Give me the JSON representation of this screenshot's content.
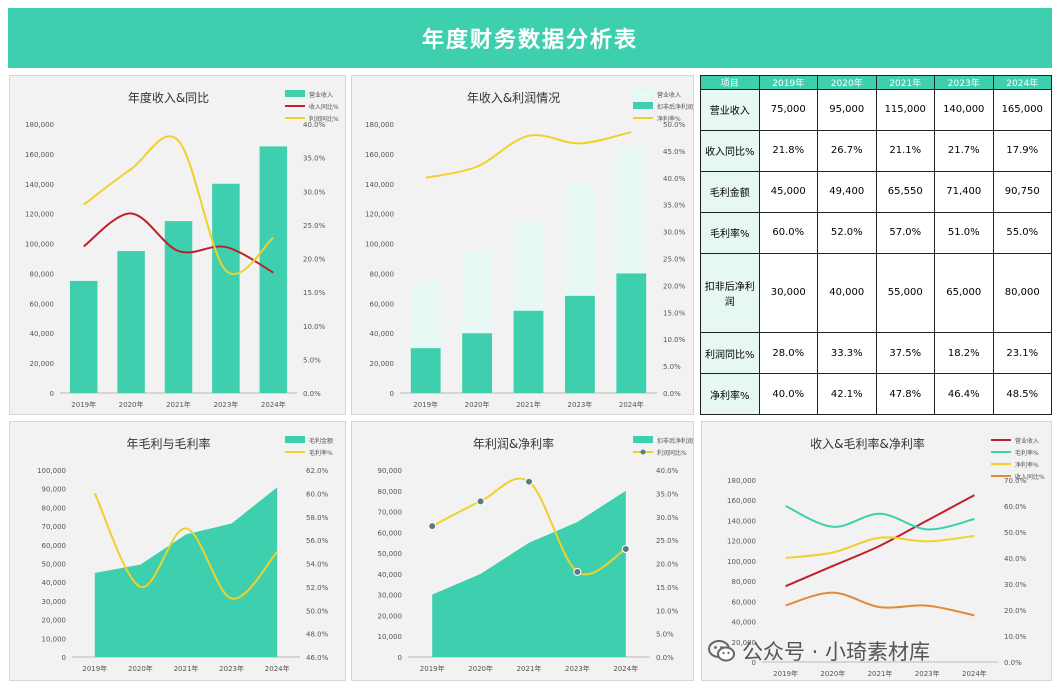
{
  "title": "年度财务数据分析表",
  "colors": {
    "teal": "#3ecfae",
    "light_teal": "#e8f8f4",
    "red": "#c0202a",
    "yellow": "#f0d12a",
    "orange": "#e08a3c",
    "dark_yellow": "#e3b820",
    "green": "#3ecfae"
  },
  "table": {
    "headers": [
      "项目",
      "2019年",
      "2020年",
      "2021年",
      "2023年",
      "2024年"
    ],
    "rows": [
      {
        "label": "营业收入",
        "values": [
          "75,000",
          "95,000",
          "115,000",
          "140,000",
          "165,000"
        ]
      },
      {
        "label": "收入同比%",
        "values": [
          "21.8%",
          "26.7%",
          "21.1%",
          "21.7%",
          "17.9%"
        ]
      },
      {
        "label": "毛利金额",
        "values": [
          "45,000",
          "49,400",
          "65,550",
          "71,400",
          "90,750"
        ]
      },
      {
        "label": "毛利率%",
        "values": [
          "60.0%",
          "52.0%",
          "57.0%",
          "51.0%",
          "55.0%"
        ]
      },
      {
        "label": "扣非后净利润",
        "values": [
          "30,000",
          "40,000",
          "55,000",
          "65,000",
          "80,000"
        ]
      },
      {
        "label": "利润同比%",
        "values": [
          "28.0%",
          "33.3%",
          "37.5%",
          "18.2%",
          "23.1%"
        ]
      },
      {
        "label": "净利率%",
        "values": [
          "40.0%",
          "42.1%",
          "47.8%",
          "46.4%",
          "48.5%"
        ]
      }
    ]
  },
  "watermark": {
    "text": "公众号 · 小琦素材库",
    "icon": "wechat-icon"
  },
  "chart_data": [
    {
      "type": "bar",
      "title": "年度收入&同比",
      "categories": [
        "2019年",
        "2020年",
        "2021年",
        "2023年",
        "2024年"
      ],
      "ylim": [
        0,
        180000
      ],
      "y2lim": [
        0,
        0.4
      ],
      "yticks": [
        "0",
        "20,000",
        "40,000",
        "60,000",
        "80,000",
        "100,000",
        "120,000",
        "140,000",
        "160,000",
        "180,000"
      ],
      "y2ticks": [
        "0.0%",
        "5.0%",
        "10.0%",
        "15.0%",
        "20.0%",
        "25.0%",
        "30.0%",
        "35.0%",
        "40.0%"
      ],
      "series": [
        {
          "name": "营业收入",
          "type": "bar",
          "axis": "y",
          "color": "#3ecfae",
          "values": [
            75000,
            95000,
            115000,
            140000,
            165000
          ]
        },
        {
          "name": "收入同比%",
          "type": "line",
          "axis": "y2",
          "color": "#c0202a",
          "values": [
            0.218,
            0.267,
            0.211,
            0.217,
            0.179
          ]
        },
        {
          "name": "利润同比%",
          "type": "line",
          "axis": "y2",
          "color": "#f0d12a",
          "values": [
            0.28,
            0.333,
            0.375,
            0.182,
            0.231
          ]
        }
      ],
      "legend_position": "top-right"
    },
    {
      "type": "bar",
      "title": "年收入&利润情况",
      "categories": [
        "2019年",
        "2020年",
        "2021年",
        "2023年",
        "2024年"
      ],
      "ylim": [
        0,
        180000
      ],
      "y2lim": [
        0,
        0.5
      ],
      "yticks": [
        "0",
        "20,000",
        "40,000",
        "60,000",
        "80,000",
        "100,000",
        "120,000",
        "140,000",
        "160,000",
        "180,000"
      ],
      "y2ticks": [
        "0.0%",
        "5.0%",
        "10.0%",
        "15.0%",
        "20.0%",
        "25.0%",
        "30.0%",
        "35.0%",
        "40.0%",
        "45.0%",
        "50.0%"
      ],
      "series": [
        {
          "name": "营业收入",
          "type": "bar-back",
          "axis": "y",
          "color": "#e8f8f4",
          "values": [
            75000,
            95000,
            115000,
            140000,
            165000
          ]
        },
        {
          "name": "扣非后净利润",
          "type": "bar",
          "axis": "y",
          "color": "#3ecfae",
          "values": [
            30000,
            40000,
            55000,
            65000,
            80000
          ]
        },
        {
          "name": "净利率%",
          "type": "line",
          "axis": "y2",
          "color": "#f0d12a",
          "values": [
            0.4,
            0.421,
            0.478,
            0.464,
            0.485
          ]
        }
      ],
      "legend_position": "top-right"
    },
    {
      "type": "area",
      "title": "年毛利与毛利率",
      "categories": [
        "2019年",
        "2020年",
        "2021年",
        "2023年",
        "2024年"
      ],
      "ylim": [
        0,
        100000
      ],
      "y2lim": [
        0.46,
        0.62
      ],
      "yticks": [
        "0",
        "10,000",
        "20,000",
        "30,000",
        "40,000",
        "50,000",
        "60,000",
        "70,000",
        "80,000",
        "90,000",
        "100,000"
      ],
      "y2ticks": [
        "46.0%",
        "48.0%",
        "50.0%",
        "52.0%",
        "54.0%",
        "56.0%",
        "58.0%",
        "60.0%",
        "62.0%"
      ],
      "series": [
        {
          "name": "毛利金额",
          "type": "area",
          "axis": "y",
          "color": "#3ecfae",
          "values": [
            45000,
            49400,
            65550,
            71400,
            90750
          ]
        },
        {
          "name": "毛利率%",
          "type": "line",
          "axis": "y2",
          "color": "#f0d12a",
          "values": [
            0.6,
            0.52,
            0.57,
            0.51,
            0.55
          ]
        }
      ],
      "legend_position": "top-right"
    },
    {
      "type": "area",
      "title": "年利润&净利率",
      "categories": [
        "2019年",
        "2020年",
        "2021年",
        "2023年",
        "2024年"
      ],
      "ylim": [
        0,
        90000
      ],
      "y2lim": [
        0,
        0.4
      ],
      "yticks": [
        "0",
        "10,000",
        "20,000",
        "30,000",
        "40,000",
        "50,000",
        "60,000",
        "70,000",
        "80,000",
        "90,000"
      ],
      "y2ticks": [
        "0.0%",
        "5.0%",
        "10.0%",
        "15.0%",
        "20.0%",
        "25.0%",
        "30.0%",
        "35.0%",
        "40.0%"
      ],
      "series": [
        {
          "name": "扣非后净利润",
          "type": "area",
          "axis": "y",
          "color": "#3ecfae",
          "values": [
            30000,
            40000,
            55000,
            65000,
            80000
          ]
        },
        {
          "name": "利润同比%",
          "type": "line-marker",
          "axis": "y2",
          "color": "#f0d12a",
          "values": [
            0.28,
            0.333,
            0.375,
            0.182,
            0.231
          ]
        }
      ],
      "legend_position": "top-right"
    },
    {
      "type": "line",
      "title": "收入&毛利率&净利率",
      "categories": [
        "2019年",
        "2020年",
        "2021年",
        "2023年",
        "2024年"
      ],
      "ylim": [
        0,
        180000
      ],
      "y2lim": [
        0,
        0.7
      ],
      "yticks": [
        "0",
        "20,000",
        "40,000",
        "60,000",
        "80,000",
        "100,000",
        "120,000",
        "140,000",
        "160,000",
        "180,000"
      ],
      "y2ticks": [
        "0.0%",
        "10.0%",
        "20.0%",
        "30.0%",
        "40.0%",
        "50.0%",
        "60.0%",
        "70.0%"
      ],
      "series": [
        {
          "name": "营业收入",
          "type": "line",
          "axis": "y",
          "color": "#c0202a",
          "values": [
            75000,
            95000,
            115000,
            140000,
            165000
          ]
        },
        {
          "name": "毛利率%",
          "type": "line",
          "axis": "y2",
          "color": "#3ecfae",
          "values": [
            0.6,
            0.52,
            0.57,
            0.51,
            0.55
          ]
        },
        {
          "name": "净利率%",
          "type": "line",
          "axis": "y2",
          "color": "#f0d12a",
          "values": [
            0.4,
            0.421,
            0.478,
            0.464,
            0.485
          ]
        },
        {
          "name": "收入同比%",
          "type": "line",
          "axis": "y2",
          "color": "#e08a3c",
          "values": [
            0.218,
            0.267,
            0.211,
            0.217,
            0.179
          ]
        }
      ],
      "legend_position": "top-right"
    }
  ]
}
